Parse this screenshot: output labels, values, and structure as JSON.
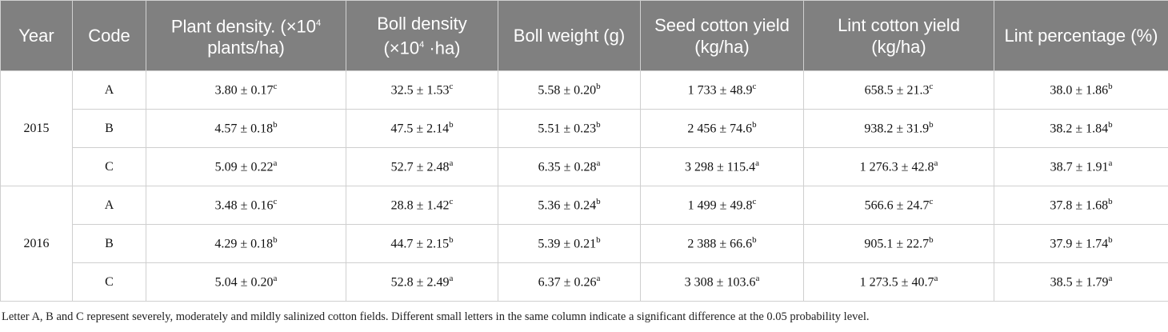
{
  "table": {
    "header": [
      {
        "text": "Year"
      },
      {
        "text": "Code"
      },
      {
        "text": "Plant density. (×10",
        "sup": "4",
        "rest": " plants/ha)"
      },
      {
        "text": "Boll density (×10",
        "sup": "4",
        "rest": " ·ha)"
      },
      {
        "text": "Boll weight (g)"
      },
      {
        "text": "Seed cotton yield (kg/ha)"
      },
      {
        "text": "Lint cotton yield (kg/ha)"
      },
      {
        "text": "Lint percentage (%)"
      }
    ],
    "groups": [
      {
        "year": "2015",
        "rows": [
          {
            "code": "A",
            "cells": [
              {
                "text": "3.80 ± 0.17",
                "sup": "c"
              },
              {
                "text": "32.5 ± 1.53",
                "sup": "c"
              },
              {
                "text": "5.58 ± 0.20",
                "sup": "b"
              },
              {
                "text": "1 733 ± 48.9",
                "sup": "c"
              },
              {
                "text": "658.5 ± 21.3",
                "sup": "c"
              },
              {
                "text": "38.0 ± 1.86",
                "sup": "b"
              }
            ]
          },
          {
            "code": "B",
            "cells": [
              {
                "text": "4.57 ± 0.18",
                "sup": "b"
              },
              {
                "text": "47.5 ± 2.14",
                "sup": "b"
              },
              {
                "text": "5.51 ± 0.23",
                "sup": "b"
              },
              {
                "text": "2 456 ± 74.6",
                "sup": "b"
              },
              {
                "text": "938.2 ± 31.9",
                "sup": "b"
              },
              {
                "text": "38.2 ± 1.84",
                "sup": "b"
              }
            ]
          },
          {
            "code": "C",
            "cells": [
              {
                "text": "5.09 ± 0.22",
                "sup": "a"
              },
              {
                "text": "52.7 ± 2.48",
                "sup": "a"
              },
              {
                "text": "6.35 ± 0.28",
                "sup": "a"
              },
              {
                "text": "3 298 ± 115.4",
                "sup": "a"
              },
              {
                "text": "1 276.3 ± 42.8",
                "sup": "a"
              },
              {
                "text": "38.7 ± 1.91",
                "sup": "a"
              }
            ]
          }
        ]
      },
      {
        "year": "2016",
        "rows": [
          {
            "code": "A",
            "cells": [
              {
                "text": "3.48 ± 0.16",
                "sup": "c"
              },
              {
                "text": "28.8 ± 1.42",
                "sup": "c"
              },
              {
                "text": "5.36 ± 0.24",
                "sup": "b"
              },
              {
                "text": "1 499 ± 49.8",
                "sup": "c"
              },
              {
                "text": "566.6 ± 24.7",
                "sup": "c"
              },
              {
                "text": "37.8 ± 1.68",
                "sup": "b"
              }
            ]
          },
          {
            "code": "B",
            "cells": [
              {
                "text": "4.29 ± 0.18",
                "sup": "b"
              },
              {
                "text": "44.7 ± 2.15",
                "sup": "b"
              },
              {
                "text": "5.39 ± 0.21",
                "sup": "b"
              },
              {
                "text": "2 388 ± 66.6",
                "sup": "b"
              },
              {
                "text": "905.1 ± 22.7",
                "sup": "b"
              },
              {
                "text": "37.9 ± 1.74",
                "sup": "b"
              }
            ]
          },
          {
            "code": "C",
            "cells": [
              {
                "text": "5.04 ± 0.20",
                "sup": "a"
              },
              {
                "text": "52.8 ± 2.49",
                "sup": "a"
              },
              {
                "text": "6.37 ± 0.26",
                "sup": "a"
              },
              {
                "text": "3 308 ± 103.6",
                "sup": "a"
              },
              {
                "text": "1 273.5 ± 40.7",
                "sup": "a"
              },
              {
                "text": "38.5 ± 1.79",
                "sup": "a"
              }
            ]
          }
        ]
      }
    ]
  },
  "footnote": "Letter A, B and C represent severely, moderately and mildly salinized cotton fields. Different small letters in the same column indicate a significant difference at the 0.05 probability level."
}
